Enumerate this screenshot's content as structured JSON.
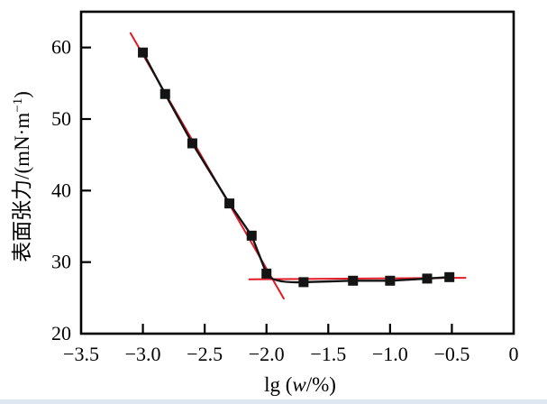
{
  "page": {
    "background": "#ffffff",
    "bottom_strip_color": "#dde7f2"
  },
  "chart_data": {
    "type": "line",
    "title": "",
    "xlabel": "lg (w/%)",
    "xlabel_parts": {
      "prefix": "lg (",
      "variable_italic": "w",
      "suffix": "/%)"
    },
    "ylabel": "表面张力/(mN·m−1)",
    "ylabel_parts": {
      "main": "表面张力/(mN·m",
      "superscript": "−1",
      "close": ")"
    },
    "xlim": [
      -3.5,
      0
    ],
    "ylim": [
      20,
      65
    ],
    "grid": false,
    "legend": null,
    "frame_color": "#000000",
    "xticks": {
      "values": [
        -3.5,
        -3.0,
        -2.5,
        -2.0,
        -1.5,
        -1.0,
        -0.5,
        0
      ],
      "labels": [
        "−3.5",
        "−3.0",
        "−2.5",
        "−2.0",
        "−1.5",
        "−1.0",
        "−0.5",
        "0"
      ]
    },
    "yticks": {
      "values": [
        20,
        30,
        40,
        50,
        60
      ],
      "labels": [
        "20",
        "30",
        "40",
        "50",
        "60"
      ]
    },
    "series": [
      {
        "name": "surface-tension-vs-lg-w",
        "marker": "filled-square",
        "marker_size": 11,
        "color": "#141414",
        "plateau_start_index": 6,
        "points": [
          [
            -3.0,
            59.3
          ],
          [
            -2.82,
            53.5
          ],
          [
            -2.6,
            46.6
          ],
          [
            -2.3,
            38.2
          ],
          [
            -2.12,
            33.7
          ],
          [
            -2.0,
            28.4
          ],
          [
            -1.7,
            27.2
          ],
          [
            -1.3,
            27.4
          ],
          [
            -1.0,
            27.4
          ],
          [
            -0.7,
            27.7
          ],
          [
            -0.52,
            27.9
          ]
        ]
      }
    ],
    "annotation_lines": [
      {
        "name": "tangent-line-steep",
        "color": "#e11a26",
        "from": [
          -3.1,
          62.0
        ],
        "to": [
          -1.86,
          24.9
        ]
      },
      {
        "name": "tangent-line-plateau",
        "color": "#e11a26",
        "from": [
          -2.14,
          27.6
        ],
        "to": [
          -0.39,
          27.8
        ]
      }
    ]
  }
}
